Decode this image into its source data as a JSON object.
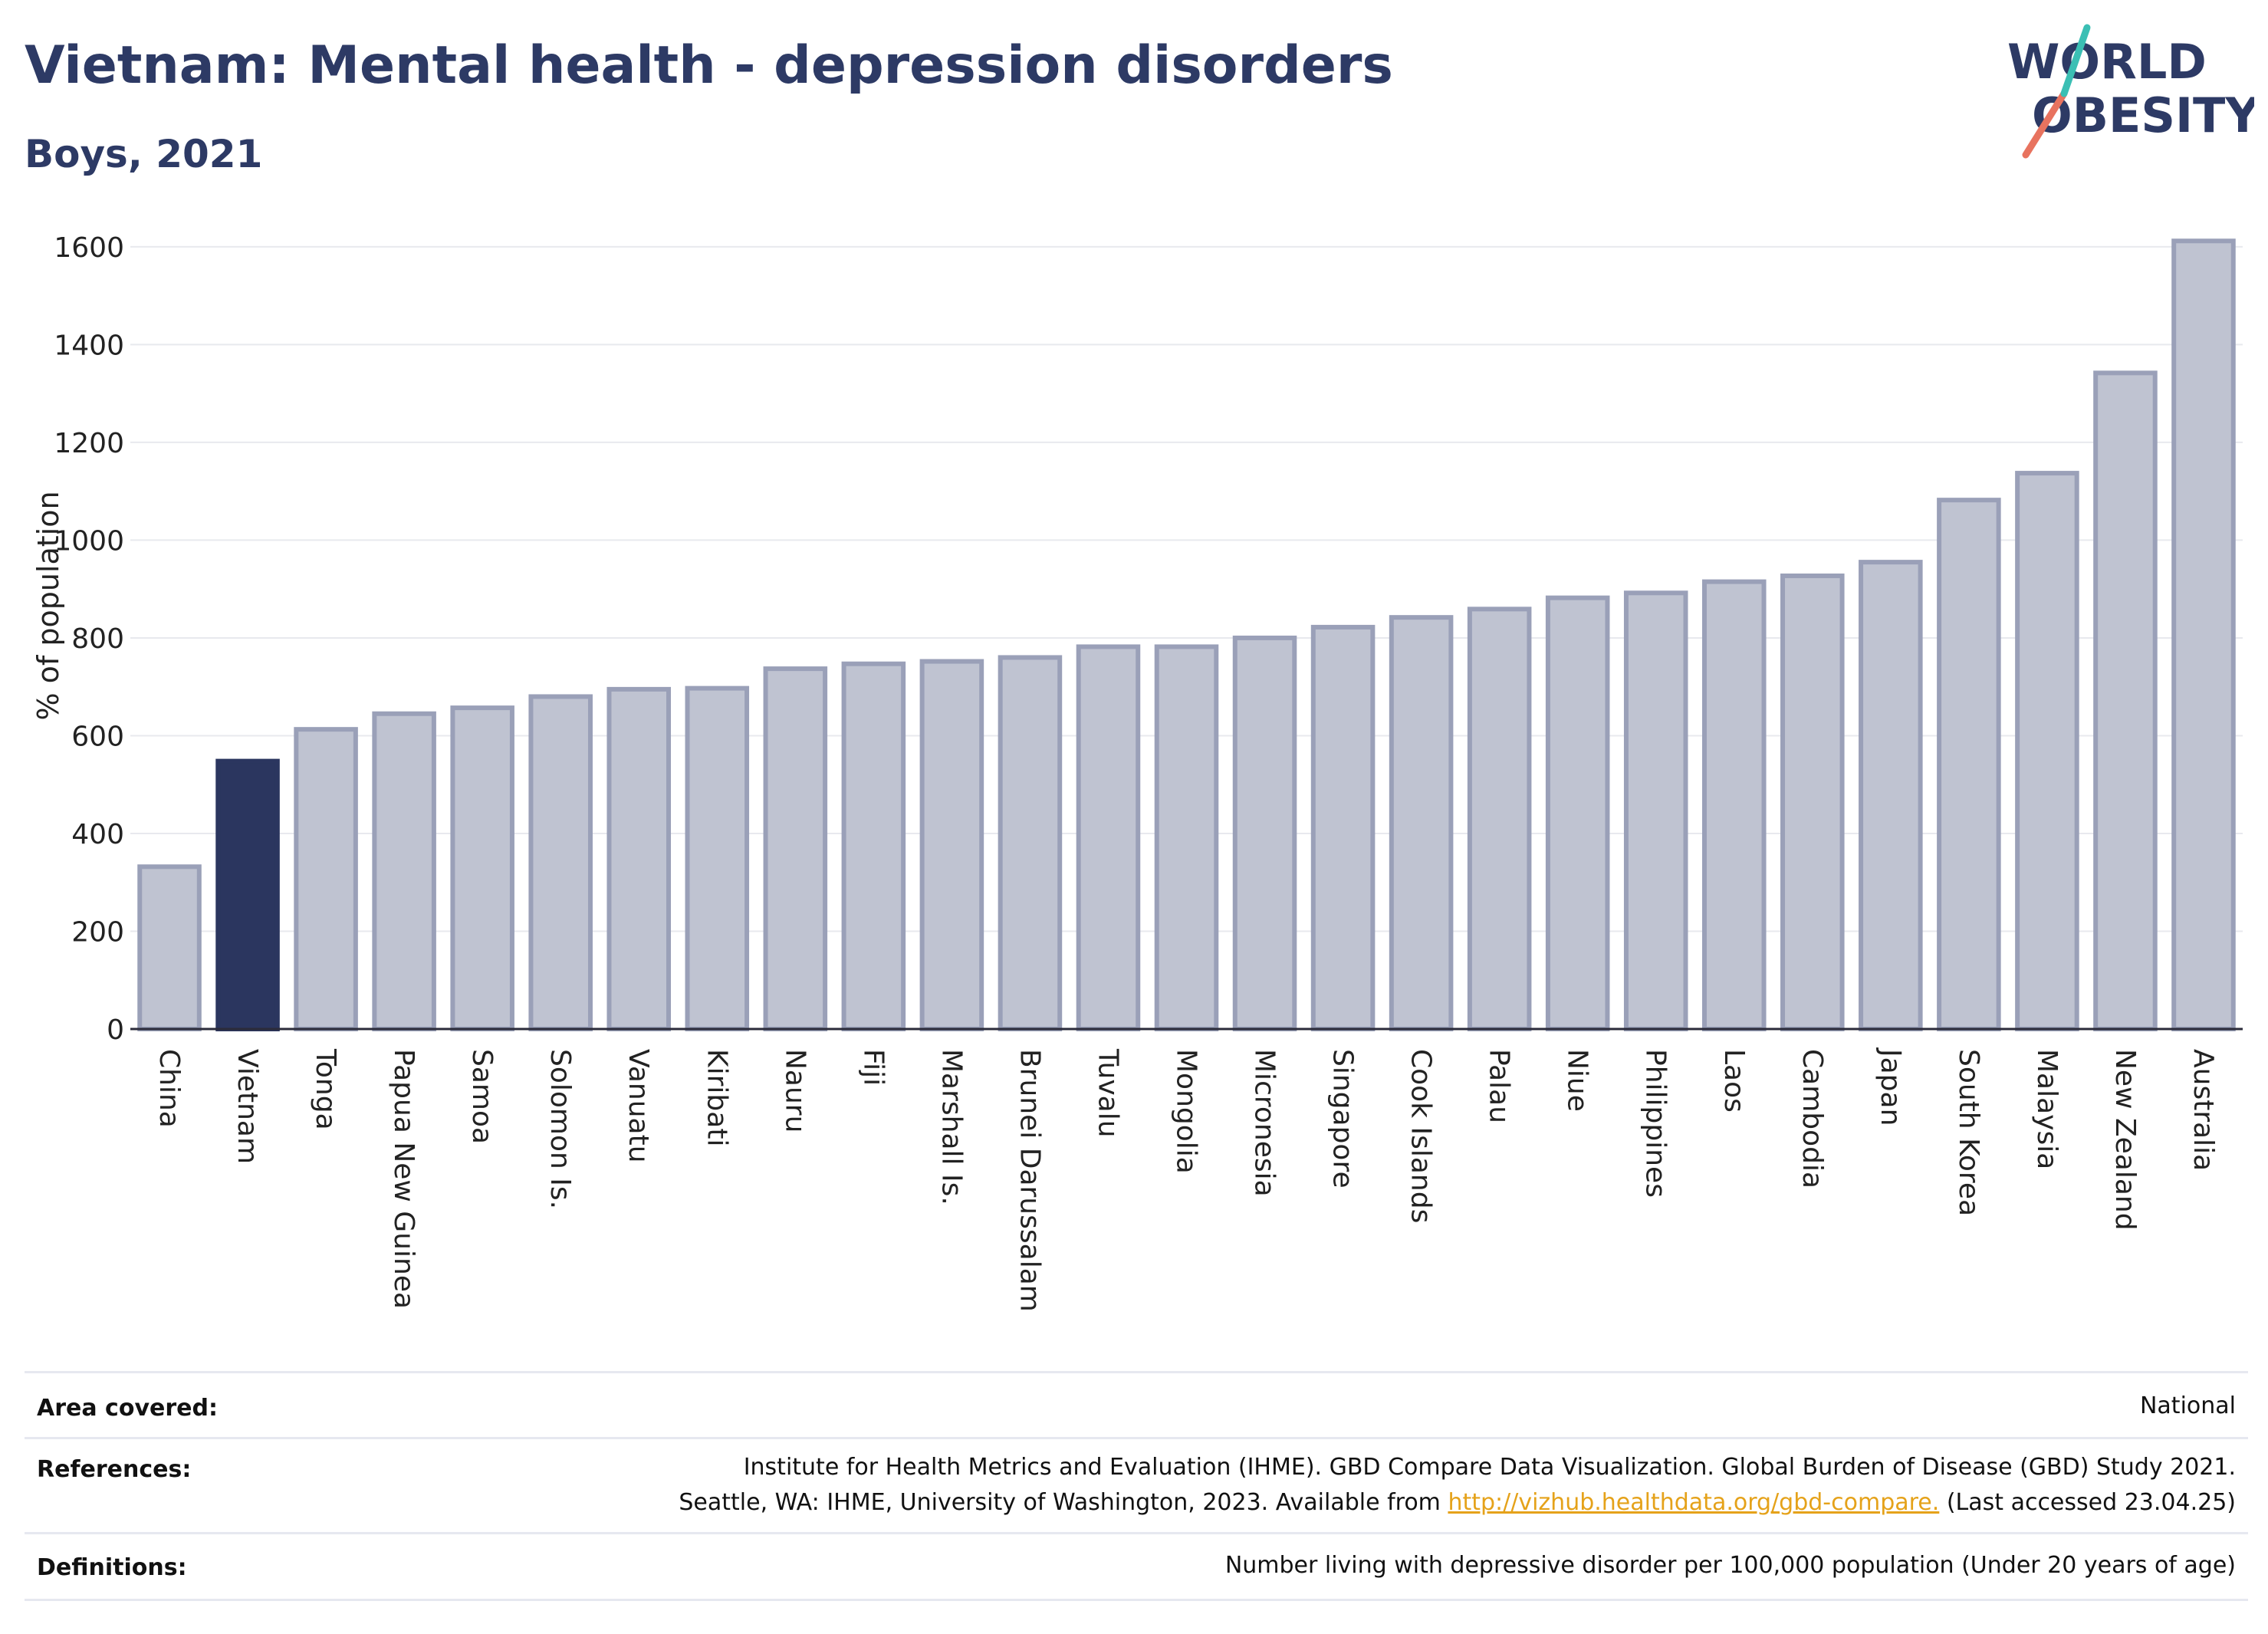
{
  "header": {
    "title": "Vietnam: Mental health - depression disorders",
    "subtitle": "Boys, 2021"
  },
  "logo": {
    "line1": "WORLD",
    "line2": "OBESITY"
  },
  "colors": {
    "highlight": "#2b365f",
    "bar": "#bfc3d1",
    "bar_edge": "#9aa0b8",
    "title": "#2d3a65",
    "link": "#e5a21a"
  },
  "chart_data": {
    "type": "bar",
    "title": "Vietnam: Mental health - depression disorders",
    "subtitle": "Boys, 2021",
    "xlabel": "",
    "ylabel": "% of population",
    "ylim": [
      0,
      1650
    ],
    "yticks": [
      0,
      200,
      400,
      600,
      800,
      1000,
      1200,
      1400,
      1600
    ],
    "grid": true,
    "highlight": "Vietnam",
    "categories": [
      "China",
      "Vietnam",
      "Tonga",
      "Papua New Guinea",
      "Samoa",
      "Solomon Is.",
      "Vanuatu",
      "Kiribati",
      "Nauru",
      "Fiji",
      "Marshall Is.",
      "Brunei Darussalam",
      "Tuvalu",
      "Mongolia",
      "Micronesia",
      "Singapore",
      "Cook Islands",
      "Palau",
      "Niue",
      "Philippines",
      "Laos",
      "Cambodia",
      "Japan",
      "South Korea",
      "Malaysia",
      "New Zealand",
      "Australia"
    ],
    "values": [
      332,
      548,
      613,
      645,
      657,
      680,
      695,
      697,
      737,
      747,
      752,
      760,
      782,
      782,
      800,
      822,
      842,
      859,
      882,
      892,
      915,
      927,
      955,
      1082,
      1137,
      1342,
      1612
    ]
  },
  "footer": {
    "area": {
      "label": "Area covered:",
      "value": "National"
    },
    "references": {
      "label": "References:",
      "line1": "Institute for Health Metrics and Evaluation (IHME). GBD Compare Data Visualization. Global Burden of Disease (GBD) Study 2021.",
      "line2_prefix": "Seattle, WA: IHME, University of Washington, 2023. Available from ",
      "link": "http://vizhub.healthdata.org/gbd-compare.",
      "line2_suffix": " (Last accessed 23.04.25)"
    },
    "definitions": {
      "label": "Definitions:",
      "value": "Number living with depressive disorder per 100,000 population (Under 20 years of age)"
    }
  }
}
